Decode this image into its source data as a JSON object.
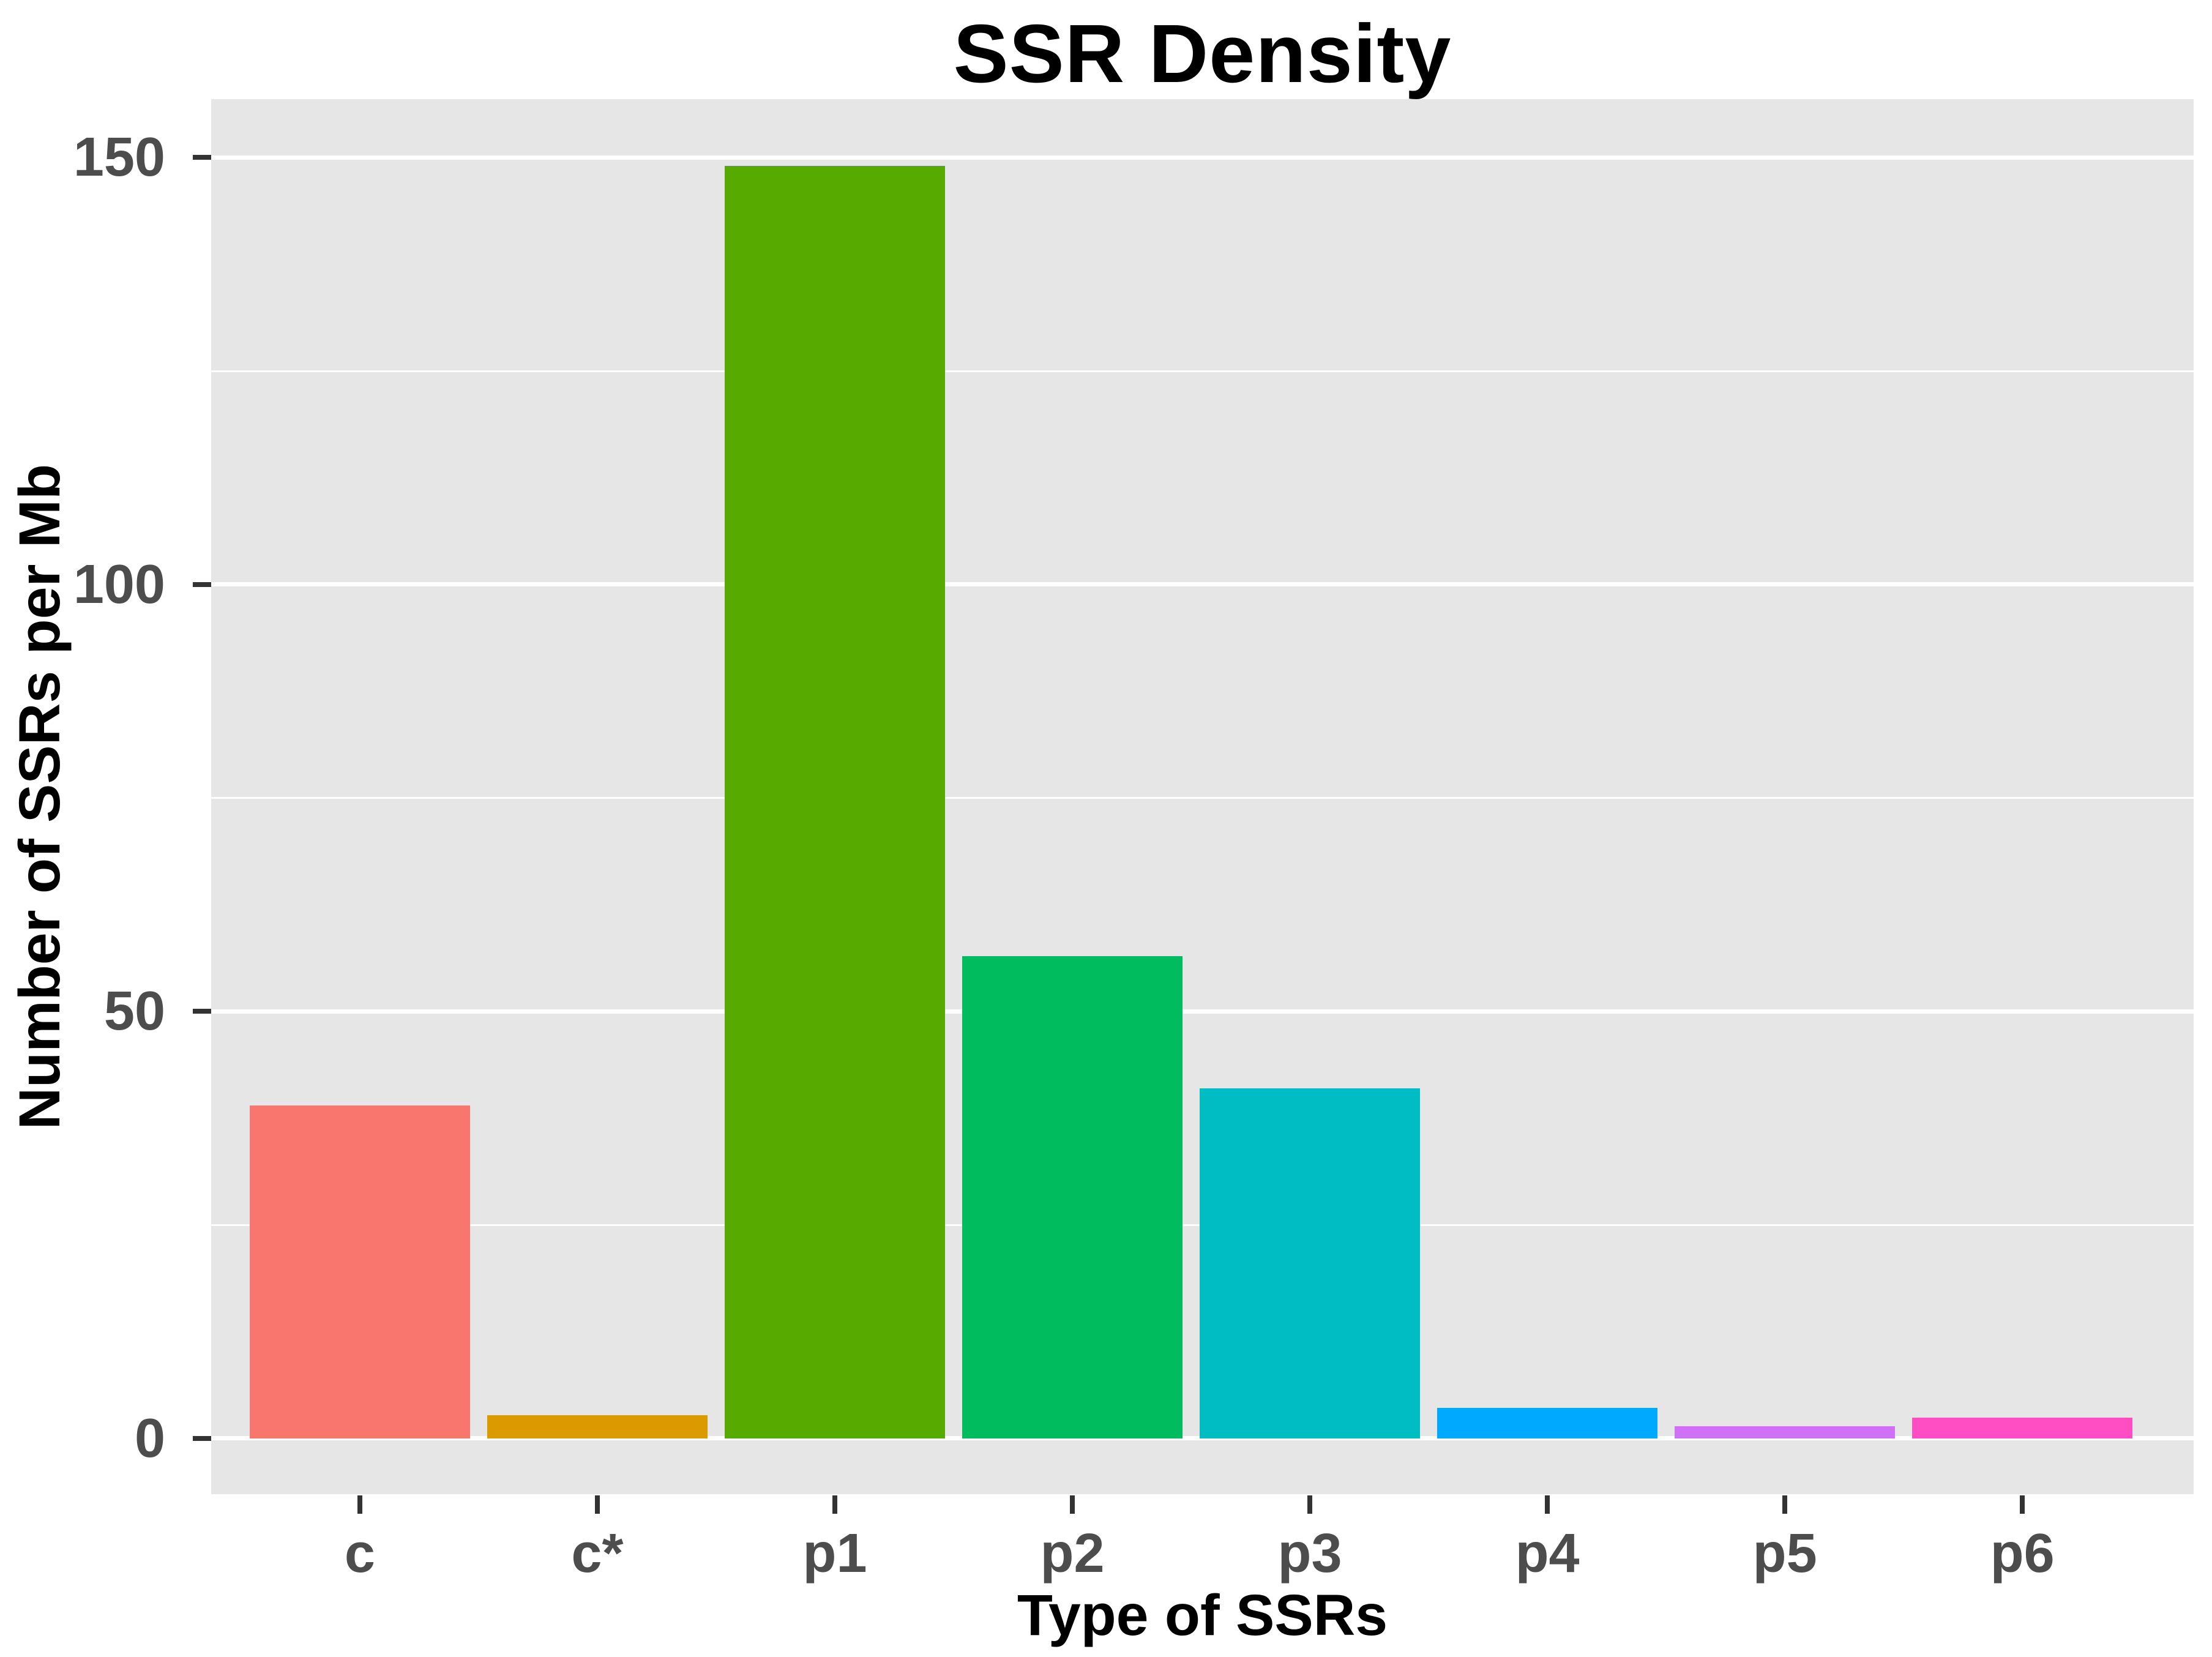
{
  "chart_data": {
    "type": "bar",
    "title": "SSR Density",
    "xlabel": "Type of SSRs",
    "ylabel": "Number of SSRs per Mb",
    "categories": [
      "c",
      "c*",
      "p1",
      "p2",
      "p3",
      "p4",
      "p5",
      "p6"
    ],
    "values": [
      39,
      2.7,
      149,
      56.5,
      41,
      3.6,
      1.4,
      2.4
    ],
    "bar_colors": [
      "#F8766D",
      "#DB9A00",
      "#57AB00",
      "#00BC5E",
      "#00BDC4",
      "#00A9FD",
      "#CF70F7",
      "#FF4DC4"
    ],
    "y_ticks": [
      0,
      50,
      100,
      150
    ],
    "y_minor_gridlines": [
      25,
      75,
      125
    ],
    "ylim": [
      -9,
      157
    ],
    "grid": "on",
    "legend": "none",
    "panel_background": "#E6E6E6",
    "gridline_color": "#FFFFFF",
    "tick_label_color": "#4D4D4D",
    "title_color": "#000000"
  }
}
